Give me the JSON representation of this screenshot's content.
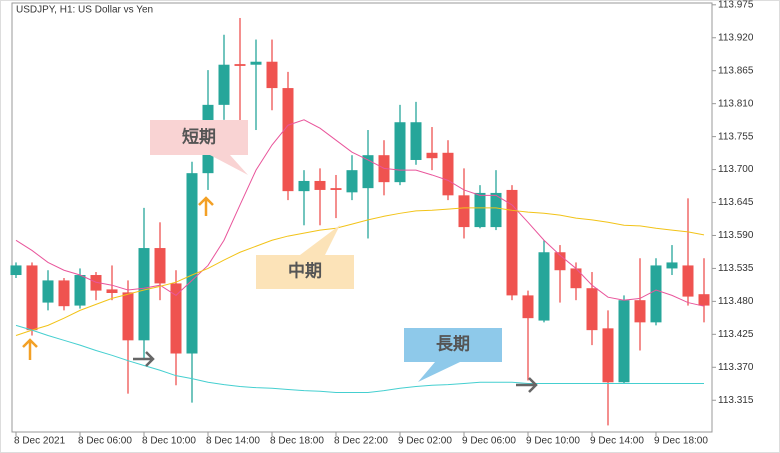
{
  "chart_data": {
    "type": "candlestick",
    "title": "USDJPY, H1:  US Dollar vs Yen",
    "categories": [
      "8 Dec 2021",
      null,
      null,
      null,
      "8 Dec 06:00",
      null,
      null,
      null,
      "8 Dec 10:00",
      null,
      null,
      null,
      "8 Dec 14:00",
      null,
      null,
      null,
      "8 Dec 18:00",
      null,
      null,
      null,
      "8 Dec 22:00",
      null,
      null,
      null,
      "9 Dec 02:00",
      null,
      null,
      null,
      "9 Dec 06:00",
      null,
      null,
      null,
      "9 Dec 10:00",
      null,
      null,
      null,
      "9 Dec 14:00",
      null,
      null,
      null,
      "9 Dec 18:00",
      null,
      null,
      null
    ],
    "open": [
      113.524,
      113.54,
      113.478,
      113.515,
      113.473,
      113.524,
      113.5,
      113.495,
      113.415,
      113.569,
      113.51,
      113.393,
      113.694,
      113.808,
      113.876,
      113.875,
      113.88,
      113.836,
      113.664,
      113.681,
      113.669,
      113.662,
      113.669,
      113.724,
      113.679,
      113.716,
      113.728,
      113.728,
      113.657,
      113.604,
      113.604,
      113.666,
      113.49,
      113.448,
      113.562,
      113.535,
      113.502,
      113.435,
      113.345,
      113.482,
      113.445,
      113.535,
      113.54,
      113.492
    ],
    "high": [
      113.545,
      113.545,
      113.532,
      113.519,
      113.535,
      113.529,
      113.54,
      113.515,
      113.636,
      113.612,
      113.532,
      113.713,
      113.866,
      113.925,
      113.953,
      113.917,
      113.917,
      113.863,
      113.699,
      113.702,
      113.691,
      113.724,
      113.766,
      113.749,
      113.808,
      113.813,
      113.771,
      113.749,
      113.702,
      113.674,
      113.699,
      113.674,
      113.498,
      113.582,
      113.574,
      113.545,
      113.529,
      113.465,
      113.49,
      113.552,
      113.552,
      113.574,
      113.652,
      113.552
    ],
    "low": [
      113.519,
      113.423,
      113.465,
      113.465,
      113.468,
      113.482,
      113.482,
      113.326,
      113.382,
      113.482,
      113.34,
      113.311,
      113.666,
      113.783,
      113.749,
      113.766,
      113.799,
      113.649,
      113.607,
      113.607,
      113.619,
      113.649,
      113.585,
      113.657,
      113.674,
      113.708,
      113.699,
      113.649,
      113.585,
      113.602,
      113.599,
      113.482,
      113.348,
      113.445,
      113.478,
      113.482,
      113.407,
      113.273,
      113.343,
      113.398,
      113.44,
      113.524,
      113.473,
      113.445
    ],
    "close": [
      113.54,
      113.432,
      113.515,
      113.472,
      113.524,
      113.498,
      113.494,
      113.415,
      113.569,
      113.51,
      113.393,
      113.694,
      113.808,
      113.875,
      113.873,
      113.88,
      113.836,
      113.664,
      113.681,
      113.666,
      113.666,
      113.699,
      113.724,
      113.679,
      113.779,
      113.779,
      113.719,
      113.657,
      113.604,
      113.661,
      113.661,
      113.49,
      113.452,
      113.562,
      113.532,
      113.502,
      113.432,
      113.345,
      113.482,
      113.445,
      113.54,
      113.545,
      113.488,
      113.473
    ],
    "up_color": "#26a69a",
    "down_color": "#ef5350",
    "series": [
      {
        "color": "#e9559b",
        "values": [
          113.582,
          113.565,
          113.545,
          113.532,
          113.524,
          113.512,
          113.507,
          113.499,
          113.502,
          113.507,
          113.49,
          113.515,
          113.54,
          113.582,
          113.641,
          113.699,
          113.741,
          113.774,
          113.783,
          113.769,
          113.749,
          113.729,
          113.716,
          113.702,
          113.699,
          113.699,
          113.691,
          113.682,
          113.666,
          113.657,
          113.657,
          113.641,
          113.612,
          113.582,
          113.557,
          113.535,
          113.507,
          113.487,
          113.482,
          113.485,
          113.499,
          113.49,
          113.478,
          113.472
        ]
      },
      {
        "color": "#f2c318",
        "values": [
          113.423,
          113.432,
          113.44,
          113.452,
          113.465,
          113.475,
          113.485,
          113.492,
          113.499,
          113.505,
          113.512,
          113.524,
          113.535,
          113.549,
          113.562,
          113.572,
          113.582,
          113.589,
          113.594,
          113.599,
          113.602,
          113.609,
          113.616,
          113.622,
          113.627,
          113.631,
          113.632,
          113.634,
          113.636,
          113.636,
          113.636,
          113.632,
          113.629,
          113.627,
          113.624,
          113.619,
          113.616,
          113.612,
          113.607,
          113.606,
          113.602,
          113.599,
          113.596,
          113.591
        ]
      },
      {
        "color": "#45cfd0",
        "values": [
          113.44,
          113.432,
          113.423,
          113.415,
          113.407,
          113.398,
          113.39,
          113.381,
          113.373,
          113.365,
          113.356,
          113.351,
          113.345,
          113.341,
          113.338,
          113.336,
          113.335,
          113.333,
          113.331,
          113.33,
          113.328,
          113.328,
          113.328,
          113.331,
          113.335,
          113.338,
          113.34,
          113.341,
          113.343,
          113.345,
          113.345,
          113.345,
          113.343,
          113.343,
          113.343,
          113.343,
          113.343,
          113.343,
          113.343,
          113.343,
          113.343,
          113.343,
          113.343,
          113.343
        ]
      }
    ],
    "ylim": [
      113.262,
      113.978
    ],
    "yticks": [
      113.975,
      {
        "value": 113.92,
        "label": "113.920"
      },
      113.865,
      {
        "value": 113.81,
        "label": "113.810"
      },
      113.755,
      {
        "value": 113.7,
        "label": "113.700"
      },
      113.645,
      {
        "value": 113.59,
        "label": "113.590"
      },
      113.535,
      {
        "value": 113.48,
        "label": "113.480"
      },
      113.425,
      {
        "value": 113.37,
        "label": "113.370"
      },
      113.315
    ],
    "annotations": [
      "短期",
      "中期",
      "長期"
    ],
    "grid": false
  }
}
